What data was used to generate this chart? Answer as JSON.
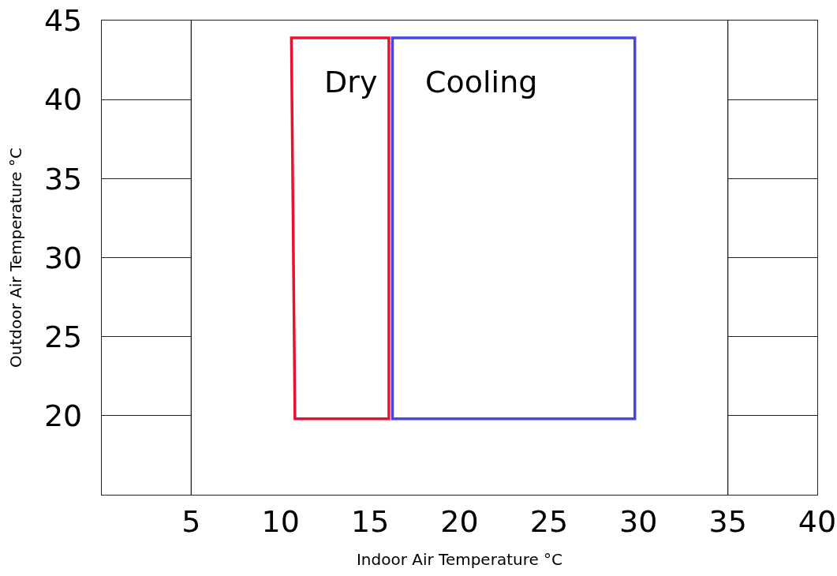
{
  "chart_data": {
    "type": "line",
    "xlabel": "Indoor Air Temperature °C",
    "ylabel": "Outdoor Air Temperature °C",
    "xlim": [
      0,
      40
    ],
    "xticks": [
      5,
      10,
      15,
      20,
      25,
      30,
      35,
      40
    ],
    "ylim": [
      15,
      45
    ],
    "yticks": [
      20,
      25,
      30,
      35,
      40,
      45
    ],
    "series": [
      {
        "name": "Dry",
        "color": "#e8112f",
        "x": [
          10.6,
          10.8,
          16.05,
          16.05,
          10.6,
          10.8
        ],
        "values": [
          43.9,
          19.8,
          19.8,
          43.9,
          43.9,
          19.8
        ]
      },
      {
        "name": "Cooling",
        "color": "#4646e8",
        "x": [
          16.25,
          16.25,
          29.8,
          29.8,
          16.25,
          16.25
        ],
        "values": [
          43.9,
          19.8,
          19.8,
          43.9,
          43.9,
          19.8
        ]
      }
    ],
    "ref_lines": [
      {
        "axis": "x",
        "value": 5,
        "color": "#222222"
      },
      {
        "axis": "x",
        "value": 35,
        "color": "#222222"
      }
    ],
    "marker": "none",
    "line_style": "solid",
    "legend": false
  }
}
